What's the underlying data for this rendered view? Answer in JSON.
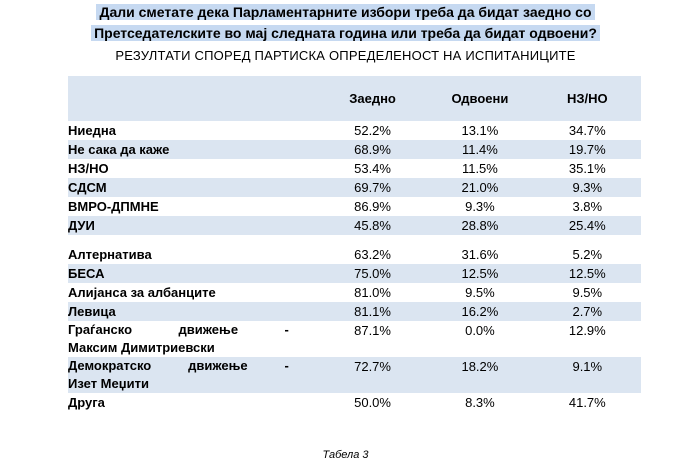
{
  "question_line1": "Дали сметате дека Парламентарните избори треба да бидат заедно со",
  "question_line2": "Претседателските во мај следната година или треба да бидат одвоени?",
  "subtitle": "РЕЗУЛТАТИ СПОРЕД ПАРТИСКА ОПРЕДЕЛЕНОСТ НА ИСПИТАНИЦИТЕ",
  "columns": [
    "Заедно",
    "Одвоени",
    "НЗ/НО"
  ],
  "rows": [
    {
      "label": "Ниедна",
      "values": [
        "52.2%",
        "13.1%",
        "34.7%"
      ]
    },
    {
      "label": "Не сака да каже",
      "values": [
        "68.9%",
        "11.4%",
        "19.7%"
      ]
    },
    {
      "label": "НЗ/НО",
      "values": [
        "53.4%",
        "11.5%",
        "35.1%"
      ]
    },
    {
      "label": "СДСМ",
      "values": [
        "69.7%",
        "21.0%",
        "9.3%"
      ]
    },
    {
      "label": "ВМРО-ДПМНЕ",
      "values": [
        "86.9%",
        "9.3%",
        "3.8%"
      ]
    },
    {
      "label": "ДУИ",
      "values": [
        "45.8%",
        "28.8%",
        "25.4%"
      ]
    },
    {
      "label": "Алтернатива",
      "values": [
        "63.2%",
        "31.6%",
        "5.2%"
      ]
    },
    {
      "label": "БЕСА",
      "values": [
        "75.0%",
        "12.5%",
        "12.5%"
      ]
    },
    {
      "label": "Алијанса за албанците",
      "values": [
        "81.0%",
        "9.5%",
        "9.5%"
      ]
    },
    {
      "label": "Левица",
      "values": [
        "81.1%",
        "16.2%",
        "2.7%"
      ]
    },
    {
      "label_a": "Граѓанско",
      "label_b": "движење",
      "label_dash": "-",
      "label_line2": "Максим Димитриевски",
      "values": [
        "87.1%",
        "0.0%",
        "12.9%"
      ]
    },
    {
      "label_a": "Демократско",
      "label_b": "движење",
      "label_dash": "-",
      "label_line2": "Изет Меџити",
      "values": [
        "72.7%",
        "18.2%",
        "9.1%"
      ]
    },
    {
      "label": "Друга",
      "values": [
        "50.0%",
        "8.3%",
        "41.7%"
      ]
    }
  ],
  "caption": "Табела 3",
  "colors": {
    "band": "#dbe5f1",
    "highlight": "#c6d9f1"
  }
}
